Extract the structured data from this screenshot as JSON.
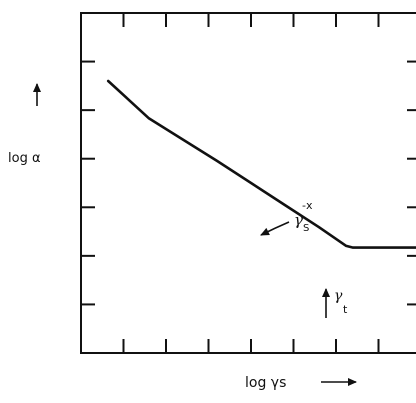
{
  "chart_data": {
    "type": "line",
    "title": "",
    "xlabel": "log γs",
    "ylabel": "log α",
    "ticks": {
      "x_count": 7,
      "y_count": 6,
      "direction": "inward",
      "tick_labels": "none"
    },
    "series": [
      {
        "points": [
          {
            "x": 0.08,
            "y": 0.8
          },
          {
            "x": 0.2,
            "y": 0.69
          },
          {
            "x": 0.4,
            "y": 0.565
          },
          {
            "x": 0.6,
            "y": 0.435
          },
          {
            "x": 0.7,
            "y": 0.37
          },
          {
            "x": 0.78,
            "y": 0.315
          },
          {
            "x": 0.8,
            "y": 0.31
          },
          {
            "x": 1.0,
            "y": 0.31
          }
        ]
      }
    ],
    "annotations": [
      {
        "base": "γ",
        "sub": "S",
        "sup": "-x",
        "arrow": "points to sloped segment of curve"
      },
      {
        "base": "γ",
        "sub": "t",
        "arrow": "upward, at knee where curve levels off"
      }
    ],
    "axis_arrows": {
      "y": "up",
      "x": "right"
    },
    "line_color": "#111111"
  }
}
